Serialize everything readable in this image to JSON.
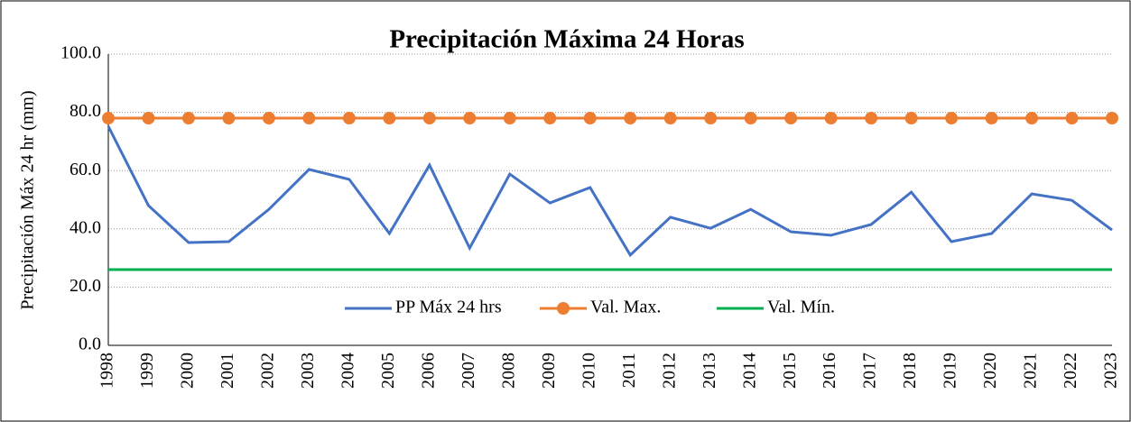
{
  "chart_data": {
    "type": "line",
    "title": "Precipitación Máxima 24 Horas",
    "ylabel": "Precipitación Máx 24 hr (mm)",
    "categories": [
      "1998",
      "1999",
      "2000",
      "2001",
      "2002",
      "2003",
      "2004",
      "2005",
      "2006",
      "2007",
      "2008",
      "2009",
      "2010",
      "2011",
      "2012",
      "2013",
      "2014",
      "2015",
      "2016",
      "2017",
      "2018",
      "2019",
      "2020",
      "2021",
      "2022",
      "2023"
    ],
    "series": [
      {
        "name": "PP Máx 24 hrs",
        "color": "#4472c4",
        "marker": false,
        "values": [
          75.2,
          48.0,
          35.3,
          35.6,
          46.7,
          60.4,
          57.0,
          38.4,
          61.9,
          33.4,
          58.8,
          48.9,
          54.2,
          31.0,
          44.0,
          40.2,
          46.7,
          39.0,
          37.8,
          41.5,
          52.6,
          35.6,
          38.4,
          52.0,
          49.8,
          39.6
        ]
      },
      {
        "name": "Val. Max.",
        "color": "#ed7d31",
        "marker": true,
        "values": [
          78.0,
          78.0,
          78.0,
          78.0,
          78.0,
          78.0,
          78.0,
          78.0,
          78.0,
          78.0,
          78.0,
          78.0,
          78.0,
          78.0,
          78.0,
          78.0,
          78.0,
          78.0,
          78.0,
          78.0,
          78.0,
          78.0,
          78.0,
          78.0,
          78.0,
          78.0
        ]
      },
      {
        "name": "Val. Mín.",
        "color": "#00b050",
        "marker": false,
        "values": [
          26.0,
          26.0,
          26.0,
          26.0,
          26.0,
          26.0,
          26.0,
          26.0,
          26.0,
          26.0,
          26.0,
          26.0,
          26.0,
          26.0,
          26.0,
          26.0,
          26.0,
          26.0,
          26.0,
          26.0,
          26.0,
          26.0,
          26.0,
          26.0,
          26.0,
          26.0
        ]
      }
    ],
    "ylim": [
      0,
      100
    ],
    "yticks": [
      {
        "value": 0,
        "label": "0.0"
      },
      {
        "value": 20,
        "label": "20.0"
      },
      {
        "value": 40,
        "label": "40.0"
      },
      {
        "value": 60,
        "label": "60.0"
      },
      {
        "value": 80,
        "label": "80.0"
      },
      {
        "value": 100,
        "label": "100.0"
      }
    ],
    "grid": true,
    "legend": "bottom"
  }
}
